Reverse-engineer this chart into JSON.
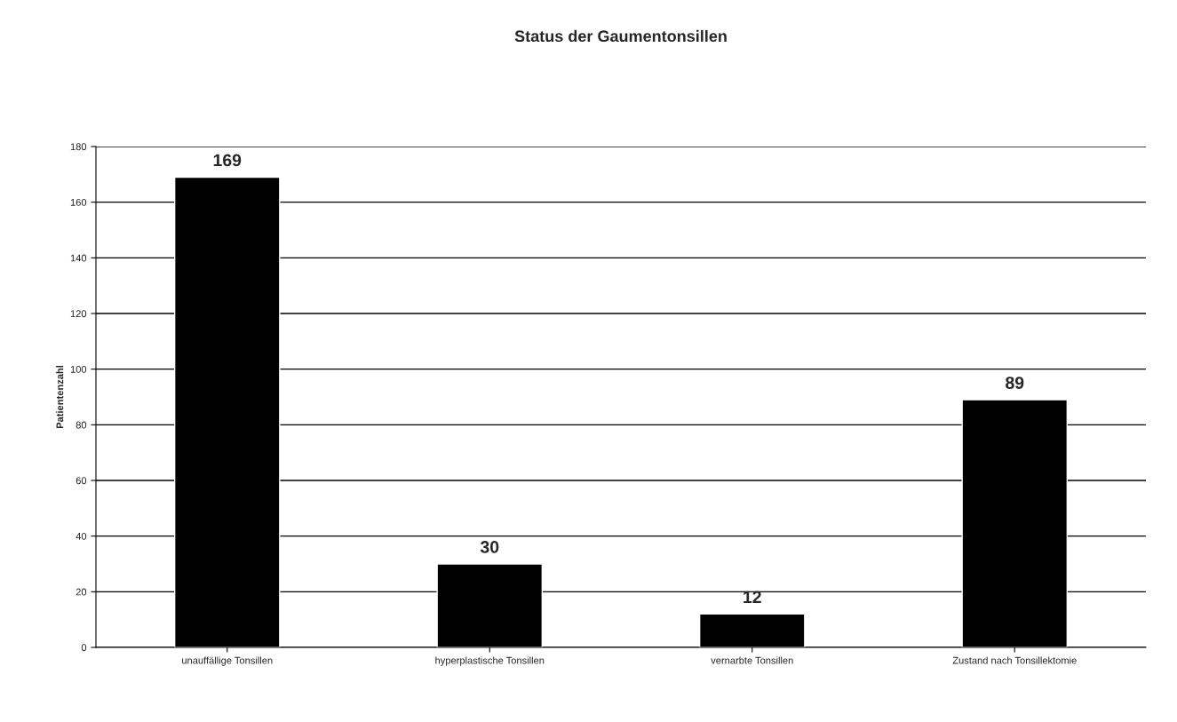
{
  "chart_data": {
    "type": "bar",
    "title": "Status der Gaumentonsillen",
    "ylabel": "Patientenzahl",
    "categories": [
      "unauffällige Tonsillen",
      "hyperplastische Tonsillen",
      "vernarbte Tonsillen",
      "Zustand nach Tonsillektomie"
    ],
    "values": [
      169,
      30,
      12,
      89
    ],
    "color": "#000000",
    "ylim": [
      0,
      180
    ],
    "yticks": [
      0,
      20,
      40,
      60,
      80,
      100,
      120,
      140,
      160,
      180
    ],
    "grid": "y",
    "data_labels": true,
    "legend": false
  }
}
